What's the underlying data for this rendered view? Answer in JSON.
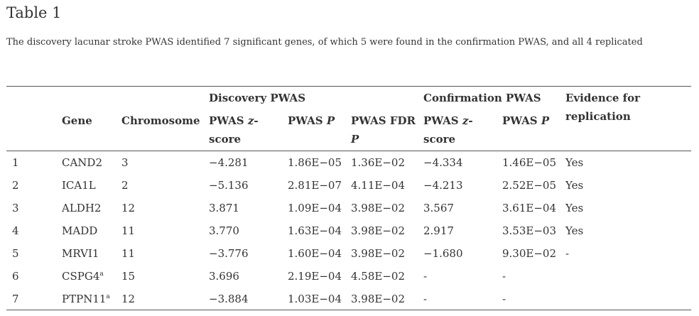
{
  "title": "Table 1",
  "caption": "The discovery lacunar stroke PWAS identified 7 significant genes, of which 5 were found in the confirmation PWAS, and all 4 replicated",
  "headers": {
    "group_discovery": "Discovery PWAS",
    "group_confirmation": "Confirmation PWAS",
    "evidence_line1": "Evidence for",
    "evidence_line2": "replication",
    "gene": "Gene",
    "chromosome": "Chromosome",
    "disc_z_line1": "PWAS ",
    "disc_z_italic": "z",
    "disc_z_dash": "-",
    "disc_z_line2": "score",
    "disc_p_text": "PWAS ",
    "disc_p_italic": "P",
    "disc_fdr_line1": "PWAS FDR",
    "disc_fdr_italic": "P",
    "conf_z_line1": "PWAS ",
    "conf_z_italic": "z",
    "conf_z_dash": "-",
    "conf_z_line2": "score",
    "conf_p_text": "PWAS ",
    "conf_p_italic": "P"
  },
  "rows": [
    {
      "n": "1",
      "gene": "CAND2",
      "sup": "",
      "chr": "3",
      "dz": "−4.281",
      "dp": "1.86E−05",
      "dfdr": "1.36E−02",
      "cz": "−4.334",
      "cp": "1.46E−05",
      "ev": "Yes"
    },
    {
      "n": "2",
      "gene": "ICA1L",
      "sup": "",
      "chr": "2",
      "dz": "−5.136",
      "dp": "2.81E−07",
      "dfdr": "4.11E−04",
      "cz": "−4.213",
      "cp": "2.52E−05",
      "ev": "Yes"
    },
    {
      "n": "3",
      "gene": "ALDH2",
      "sup": "",
      "chr": "12",
      "dz": "3.871",
      "dp": "1.09E−04",
      "dfdr": "3.98E−02",
      "cz": "3.567",
      "cp": "3.61E−04",
      "ev": "Yes"
    },
    {
      "n": "4",
      "gene": "MADD",
      "sup": "",
      "chr": "11",
      "dz": "3.770",
      "dp": "1.63E−04",
      "dfdr": "3.98E−02",
      "cz": "2.917",
      "cp": "3.53E−03",
      "ev": "Yes"
    },
    {
      "n": "5",
      "gene": "MRVI1",
      "sup": "",
      "chr": "11",
      "dz": "−3.776",
      "dp": "1.60E−04",
      "dfdr": "3.98E−02",
      "cz": "−1.680",
      "cp": "9.30E−02",
      "ev": "-"
    },
    {
      "n": "6",
      "gene": "CSPG4",
      "sup": "a",
      "chr": "15",
      "dz": "3.696",
      "dp": "2.19E−04",
      "dfdr": "4.58E−02",
      "cz": "-",
      "cp": "-",
      "ev": ""
    },
    {
      "n": "7",
      "gene": "PTPN11",
      "sup": "a",
      "chr": "12",
      "dz": "−3.884",
      "dp": "1.03E−04",
      "dfdr": "3.98E−02",
      "cz": "-",
      "cp": "-",
      "ev": ""
    }
  ]
}
